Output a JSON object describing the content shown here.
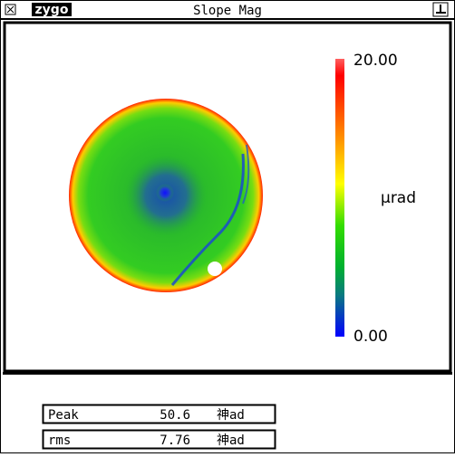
{
  "window": {
    "logo": "zygo",
    "title": "Slope Mag"
  },
  "colorbar": {
    "max_label": "20.00",
    "min_label": "0.00",
    "unit": "µrad"
  },
  "stats": {
    "rows": [
      {
        "label": "Peak",
        "value": "50.6",
        "unit": "神ad"
      },
      {
        "label": "rms",
        "value": "7.76",
        "unit": "神ad"
      }
    ]
  }
}
